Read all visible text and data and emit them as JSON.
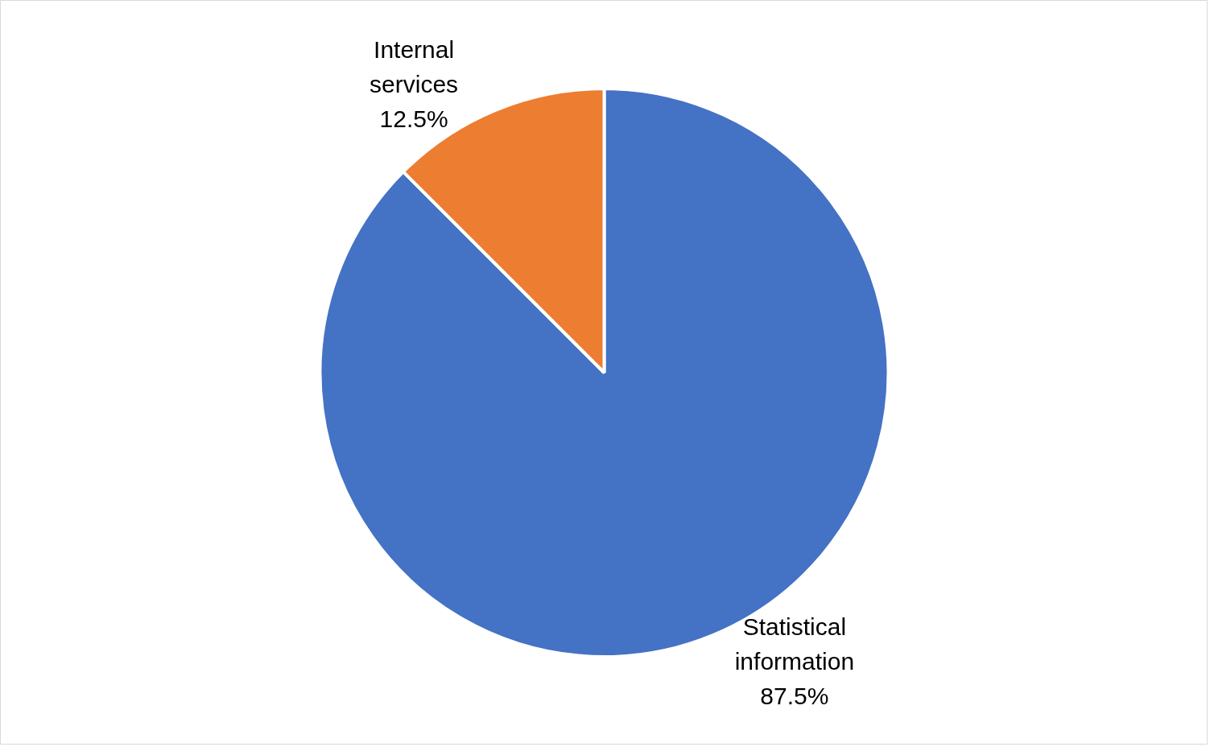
{
  "chart_data": {
    "type": "pie",
    "categories": [
      "Statistical information",
      "Internal services"
    ],
    "values": [
      87.5,
      12.5
    ],
    "colors": [
      "#4472c4",
      "#ed7d31"
    ],
    "value_labels": [
      "87.5%",
      "12.5%"
    ]
  }
}
